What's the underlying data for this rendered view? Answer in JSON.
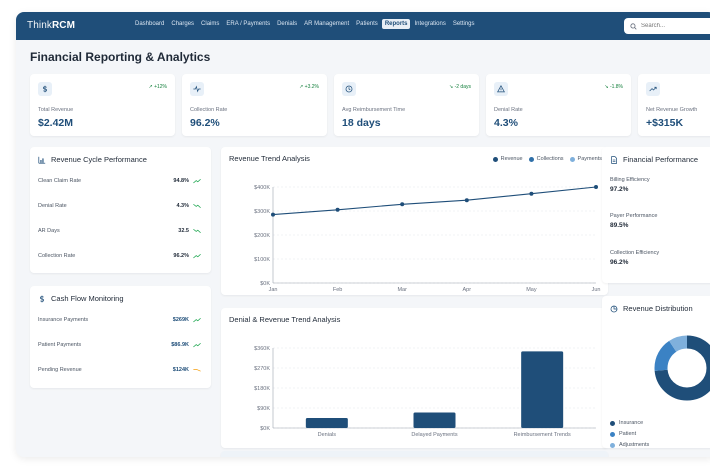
{
  "app": {
    "logo_bold": "Think",
    "logo_rest": "RCM"
  },
  "nav": {
    "links": [
      {
        "label": "Dashboard",
        "active": false
      },
      {
        "label": "Charges",
        "active": false
      },
      {
        "label": "Claims",
        "active": false
      },
      {
        "label": "ERA / Payments",
        "active": false
      },
      {
        "label": "Denials",
        "active": false
      },
      {
        "label": "AR Management",
        "active": false
      },
      {
        "label": "Patients",
        "active": false
      },
      {
        "label": "Reports",
        "active": true
      },
      {
        "label": "Integrations",
        "active": false
      },
      {
        "label": "Settings",
        "active": false
      }
    ],
    "search_placeholder": "Search..."
  },
  "page": {
    "title": "Financial Reporting & Analytics"
  },
  "kpis": [
    {
      "icon": "dollar-icon",
      "label": "Total Revenue",
      "value": "$2.42M",
      "change": "+12%"
    },
    {
      "icon": "activity-icon",
      "label": "Collection Rate",
      "value": "96.2%",
      "change": "+3.2%"
    },
    {
      "icon": "clock-icon",
      "label": "Avg Reimbursement Time",
      "value": "18 days",
      "change": "-2 days"
    },
    {
      "icon": "alert-icon",
      "label": "Denial Rate",
      "value": "4.3%",
      "change": "-1.8%"
    },
    {
      "icon": "trend-up-icon",
      "label": "Net Revenue Growth",
      "value": "+$315K",
      "change": ""
    }
  ],
  "rcp": {
    "title": "Revenue Cycle Performance",
    "rows": [
      {
        "label": "Clean Claim Rate",
        "value": "94.8%",
        "trend": "up"
      },
      {
        "label": "Denial Rate",
        "value": "4.3%",
        "trend": "down"
      },
      {
        "label": "AR Days",
        "value": "32.5",
        "trend": "down"
      },
      {
        "label": "Collection Rate",
        "value": "96.2%",
        "trend": "up"
      }
    ]
  },
  "cfm": {
    "title": "Cash Flow Monitoring",
    "rows": [
      {
        "label": "Insurance Payments",
        "value": "$269K",
        "trend": "up"
      },
      {
        "label": "Patient Payments",
        "value": "$86.9K",
        "trend": "up"
      },
      {
        "label": "Pending Revenue",
        "value": "$124K",
        "trend": "flat"
      }
    ]
  },
  "fin": {
    "title": "Financial Performance",
    "items": [
      {
        "label": "Billing Efficiency",
        "value": "97.2%"
      },
      {
        "label": "Payer Performance",
        "value": "89.5%"
      },
      {
        "label": "Collection Efficiency",
        "value": "96.2%"
      }
    ]
  },
  "revdist": {
    "title": "Revenue Distribution",
    "legend": [
      {
        "label": "Insurance",
        "color": "#1f4e79"
      },
      {
        "label": "Patient",
        "color": "#3b82c4"
      },
      {
        "label": "Adjustments",
        "color": "#7fb0dc"
      }
    ]
  },
  "chart_data": [
    {
      "type": "line",
      "title": "Revenue Trend Analysis",
      "x": [
        "Jan",
        "Feb",
        "Mar",
        "Apr",
        "May",
        "Jun"
      ],
      "series": [
        {
          "name": "Revenue",
          "values": [
            285000,
            305000,
            328000,
            345000,
            372000,
            400000
          ],
          "color": "#1f4e79"
        }
      ],
      "legend": [
        {
          "name": "Revenue",
          "color": "#1f4e79"
        },
        {
          "name": "Collections",
          "color": "#2f6fa8"
        },
        {
          "name": "Payments",
          "color": "#7fb0dc"
        }
      ],
      "yticks": [
        "$0K",
        "$100K",
        "$200K",
        "$300K",
        "$400K"
      ],
      "ylim": [
        0,
        400000
      ],
      "grid": true,
      "legend_position": "top-right"
    },
    {
      "type": "bar",
      "title": "Denial & Revenue Trend Analysis",
      "categories": [
        "Denials",
        "Delayed Payments",
        "Reimbursement Trends"
      ],
      "values": [
        45000,
        70000,
        345000
      ],
      "yticks": [
        "$0K",
        "$90K",
        "$180K",
        "$270K",
        "$360K"
      ],
      "ylim": [
        0,
        360000
      ],
      "color": "#1f4e79",
      "grid": true
    }
  ]
}
